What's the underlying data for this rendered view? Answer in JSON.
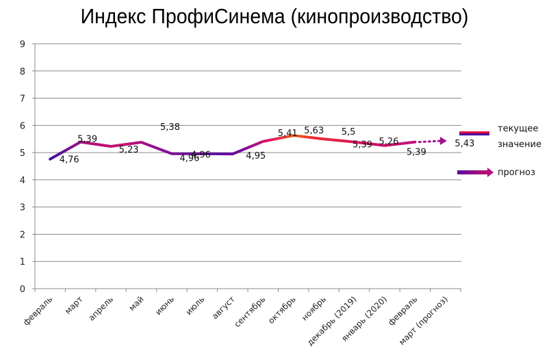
{
  "title": "Индекс ПрофиСинема (кинопроизводство)",
  "colors": {
    "line_start": "#3c10a0",
    "line_mid": "#d1106e",
    "line_peak": "#f05a1a",
    "forecast": "#a0108c",
    "grid": "#8a8a8a"
  },
  "legend": {
    "current_label_line1": "текущее",
    "current_label_line2": "значение",
    "forecast_label": "прогноз"
  },
  "chart_data": {
    "type": "line",
    "title": "Индекс ПрофиСинема (кинопроизводство)",
    "xlabel": "",
    "ylabel": "",
    "ylim": [
      0,
      9
    ],
    "yticks": [
      0,
      1,
      2,
      3,
      4,
      5,
      6,
      7,
      8,
      9
    ],
    "grid": true,
    "legend_position": "right",
    "categories": [
      "февраль",
      "март",
      "апрель",
      "май",
      "июнь",
      "июль",
      "август",
      "сентябрь",
      "октябрь",
      "ноябрь",
      "декабрь (2019)",
      "январь (2020)",
      "февраль",
      "март (прогноз)"
    ],
    "series": [
      {
        "name": "текущее значение",
        "values": [
          4.76,
          5.39,
          5.23,
          5.38,
          4.96,
          4.96,
          4.95,
          5.41,
          5.63,
          5.5,
          5.39,
          5.26,
          5.39,
          null
        ],
        "labels": [
          "4,76",
          "5,39",
          "5,23",
          "5,38",
          "4,96",
          "4,96",
          "4,95",
          "5,41",
          "5,63",
          "5,5",
          "5,39",
          "5,26",
          "5,39",
          null
        ]
      },
      {
        "name": "прогноз",
        "values": [
          null,
          null,
          null,
          null,
          null,
          null,
          null,
          null,
          null,
          null,
          null,
          null,
          5.39,
          5.43
        ],
        "labels": [
          null,
          null,
          null,
          null,
          null,
          null,
          null,
          null,
          null,
          null,
          null,
          null,
          null,
          "5,43"
        ],
        "style": "dotted-arrow"
      }
    ]
  }
}
